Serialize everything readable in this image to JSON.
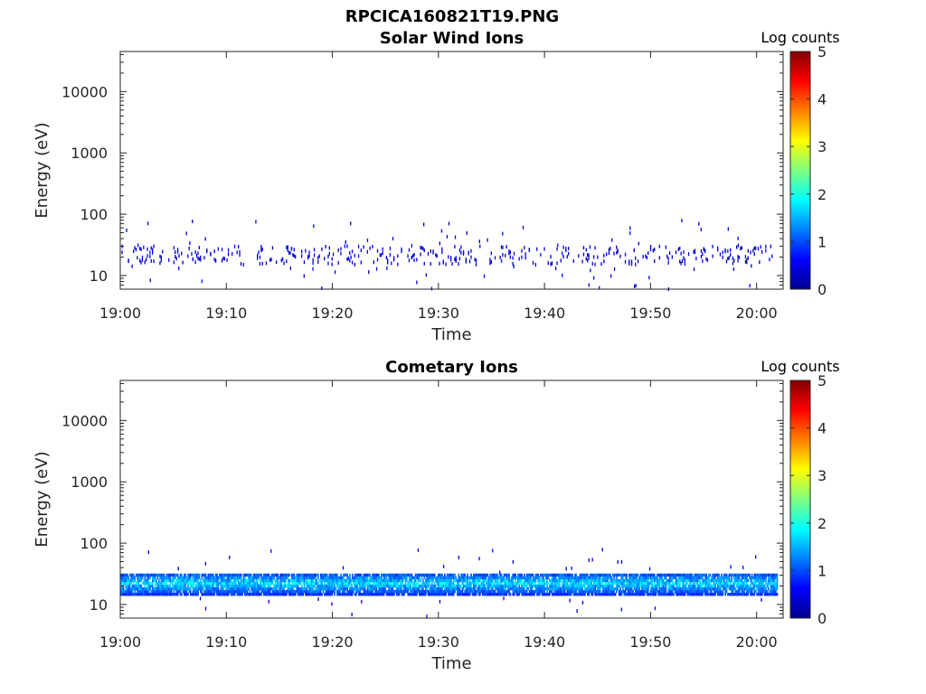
{
  "figure": {
    "title": "RPCICA160821T19.PNG"
  },
  "chart_data": [
    {
      "type": "heatmap",
      "title": "Solar Wind Ions",
      "xlabel": "Time",
      "ylabel": "Energy (eV)",
      "x_ticks": [
        "19:00",
        "19:10",
        "19:20",
        "19:30",
        "19:40",
        "19:50",
        "20:00"
      ],
      "y_ticks": [
        "10",
        "100",
        "1000",
        "10000"
      ],
      "y_tick_values": [
        10,
        100,
        1000,
        10000
      ],
      "y_scale": "log",
      "ylim": [
        6,
        45000
      ],
      "xlim_minutes": [
        0,
        62.5
      ],
      "colorbar": {
        "title": "Log counts",
        "ticks": [
          "0",
          "1",
          "2",
          "3",
          "4",
          "5"
        ],
        "range": [
          0,
          5
        ],
        "colormap": "jet"
      },
      "band": {
        "energy_low_eV": 15,
        "energy_high_eV": 30,
        "peak_log_counts": 0.5,
        "fill": "sparse"
      },
      "scatter_energy_max_eV": 80
    },
    {
      "type": "heatmap",
      "title": "Cometary Ions",
      "xlabel": "Time",
      "ylabel": "Energy (eV)",
      "x_ticks": [
        "19:00",
        "19:10",
        "19:20",
        "19:30",
        "19:40",
        "19:50",
        "20:00"
      ],
      "y_ticks": [
        "10",
        "100",
        "1000",
        "10000"
      ],
      "y_tick_values": [
        10,
        100,
        1000,
        10000
      ],
      "y_scale": "log",
      "ylim": [
        6,
        45000
      ],
      "xlim_minutes": [
        0,
        62.5
      ],
      "colorbar": {
        "title": "Log counts",
        "ticks": [
          "0",
          "1",
          "2",
          "3",
          "4",
          "5"
        ],
        "range": [
          0,
          5
        ],
        "colormap": "jet"
      },
      "band": {
        "energy_low_eV": 14,
        "energy_high_eV": 32,
        "peak_log_counts": 1.8,
        "fill": "dense"
      },
      "scatter_energy_max_eV": 80
    }
  ]
}
